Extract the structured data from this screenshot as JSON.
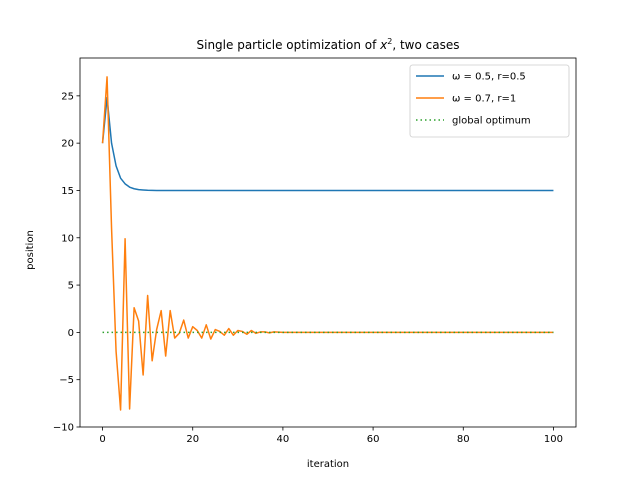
{
  "chart_data": {
    "type": "line",
    "title_prefix": "Single particle optimization of ",
    "title_var": "x",
    "title_exp": "2",
    "title_suffix": ", two cases",
    "xlabel": "iteration",
    "ylabel": "position",
    "xlim": [
      -5,
      105
    ],
    "ylim": [
      -10,
      29
    ],
    "xticks": [
      0,
      20,
      40,
      60,
      80,
      100
    ],
    "yticks": [
      -10,
      -5,
      0,
      5,
      10,
      15,
      20,
      25
    ],
    "grid": false,
    "legend_position": "top-right",
    "series": [
      {
        "name": "ω = 0.5, r=0.5",
        "color": "#1f77b4",
        "style": "solid",
        "x": [
          0,
          1,
          2,
          3,
          4,
          5,
          6,
          7,
          8,
          9,
          10,
          11,
          12,
          13,
          14,
          15,
          16,
          17,
          18,
          19,
          20,
          25,
          30,
          40,
          50,
          60,
          70,
          80,
          90,
          100
        ],
        "y": [
          20,
          24.8,
          20.0,
          17.6,
          16.3,
          15.7,
          15.35,
          15.18,
          15.09,
          15.05,
          15.02,
          15.01,
          15.0,
          15.0,
          15.0,
          15.0,
          15.0,
          15.0,
          15.0,
          15.0,
          15.0,
          15.0,
          15.0,
          15.0,
          15.0,
          15.0,
          15.0,
          15.0,
          15.0,
          15.0
        ]
      },
      {
        "name": "ω = 0.7, r=1",
        "color": "#ff7f0e",
        "style": "solid",
        "x": [
          0,
          1,
          2,
          3,
          4,
          5,
          6,
          7,
          8,
          9,
          10,
          11,
          12,
          13,
          14,
          15,
          16,
          17,
          18,
          19,
          20,
          21,
          22,
          23,
          24,
          25,
          26,
          27,
          28,
          29,
          30,
          31,
          32,
          33,
          34,
          35,
          36,
          37,
          38,
          40,
          45,
          50,
          60,
          70,
          80,
          90,
          100
        ],
        "y": [
          20,
          27,
          11,
          -2,
          -8.2,
          9.9,
          -8.1,
          2.6,
          1.2,
          -4.5,
          3.9,
          -3,
          0.3,
          2.3,
          -2.5,
          2.3,
          -0.6,
          -0.1,
          1.3,
          -0.6,
          0.6,
          0.2,
          -0.6,
          0.8,
          -0.7,
          0.3,
          0.1,
          -0.3,
          0.4,
          -0.3,
          0.2,
          0.1,
          -0.2,
          0.2,
          -0.1,
          0.05,
          0.05,
          -0.05,
          0.05,
          0,
          0,
          0,
          0,
          0,
          0,
          0,
          0
        ]
      },
      {
        "name": "global optimum",
        "color": "#2ca02c",
        "style": "dotted",
        "x": [
          0,
          100
        ],
        "y": [
          0,
          0
        ]
      }
    ]
  }
}
